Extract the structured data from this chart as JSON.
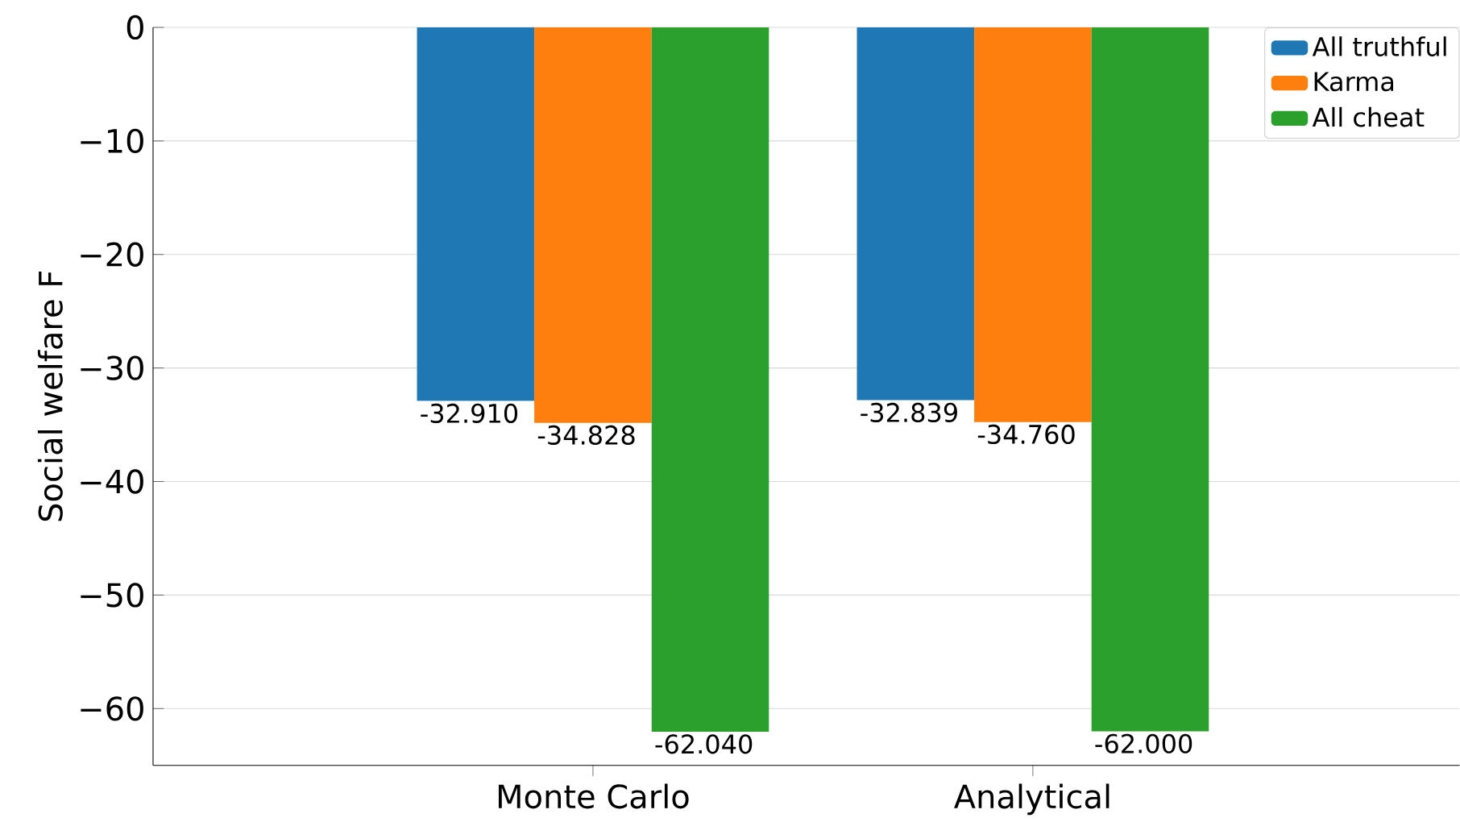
{
  "chart_data": {
    "type": "bar",
    "ylabel": "Social welfare F",
    "categories": [
      "Monte Carlo",
      "Analytical"
    ],
    "series": [
      {
        "name": "All truthful",
        "color": "#1f77b4",
        "values": [
          -32.91,
          -32.839
        ],
        "value_labels": [
          "-32.910",
          "-32.839"
        ]
      },
      {
        "name": "Karma",
        "color": "#ff7f0e",
        "values": [
          -34.828,
          -34.76
        ],
        "value_labels": [
          "-34.828",
          "-34.760"
        ]
      },
      {
        "name": "All cheat",
        "color": "#2ca02c",
        "values": [
          -62.04,
          -62.0
        ],
        "value_labels": [
          "-62.040",
          "-62.000"
        ]
      }
    ],
    "ylim": [
      -65,
      0
    ],
    "yticks": [
      0,
      {
        "value": -10,
        "label": "−10"
      },
      {
        "value": -20,
        "label": "−20"
      },
      {
        "value": -30,
        "label": "−30"
      },
      {
        "value": -40,
        "label": "−40"
      },
      {
        "value": -50,
        "label": "−50"
      },
      {
        "value": -60,
        "label": "−60"
      }
    ],
    "grid": "y",
    "legend": "top right"
  }
}
